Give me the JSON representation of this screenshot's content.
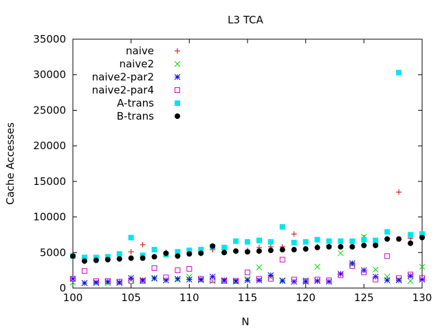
{
  "chart_data": {
    "type": "scatter",
    "title": "L3 TCA",
    "xlabel": "N",
    "ylabel": "Cache Accesses",
    "xlim": [
      100,
      130
    ],
    "ylim": [
      0,
      35000
    ],
    "x_ticks": [
      "100",
      "105",
      "110",
      "115",
      "120",
      "125",
      "130"
    ],
    "y_ticks": [
      "0",
      "5000",
      "10000",
      "15000",
      "20000",
      "25000",
      "30000",
      "35000"
    ],
    "legend_position": "top-left",
    "x": [
      100,
      101,
      102,
      103,
      104,
      105,
      106,
      107,
      108,
      109,
      110,
      111,
      112,
      113,
      114,
      115,
      116,
      117,
      118,
      119,
      120,
      121,
      122,
      123,
      124,
      125,
      126,
      127,
      128,
      129,
      130
    ],
    "series": [
      {
        "name": "naive",
        "marker": "plus",
        "color": "#cc0000",
        "values": [
          4400,
          3800,
          3900,
          4000,
          4200,
          5100,
          6100,
          4400,
          5000,
          4600,
          4900,
          4900,
          5400,
          5000,
          5200,
          5300,
          5700,
          5800,
          5800,
          7600,
          5500,
          5800,
          6000,
          6500,
          6300,
          7100,
          6200,
          6900,
          13500,
          7000,
          7400
        ]
      },
      {
        "name": "naive2",
        "marker": "cross",
        "color": "#00dd00",
        "values": [
          800,
          700,
          700,
          700,
          700,
          1100,
          1000,
          1300,
          1100,
          1200,
          1600,
          1100,
          1000,
          1000,
          900,
          1300,
          2900,
          1500,
          1100,
          900,
          1100,
          3000,
          900,
          4900,
          3300,
          7200,
          2600,
          1600,
          1200,
          1000,
          3000
        ]
      },
      {
        "name": "naive2-par2",
        "marker": "asterisk",
        "color": "#0000ee",
        "values": [
          1300,
          700,
          800,
          900,
          800,
          1400,
          1100,
          1400,
          1100,
          1300,
          1200,
          1200,
          1600,
          1100,
          1000,
          1100,
          1100,
          1800,
          1000,
          900,
          900,
          1000,
          900,
          2000,
          3500,
          2500,
          1600,
          1100,
          1100,
          1700,
          1200
        ]
      },
      {
        "name": "naive2-par4",
        "marker": "square",
        "color": "#cc00cc",
        "values": [
          1300,
          2400,
          1000,
          1000,
          900,
          1000,
          1000,
          2800,
          1500,
          2500,
          2700,
          1300,
          1100,
          1000,
          1000,
          2200,
          1300,
          1300,
          4000,
          1200,
          1000,
          1200,
          1100,
          1800,
          3100,
          2200,
          1200,
          4500,
          1400,
          1900,
          1400
        ]
      },
      {
        "name": "A-trans",
        "marker": "filled-square",
        "color": "#00e5ee",
        "values": [
          4500,
          4300,
          4300,
          4400,
          4800,
          7100,
          4600,
          5400,
          4700,
          5100,
          5300,
          5400,
          5800,
          5700,
          6600,
          6500,
          6700,
          6500,
          8600,
          6400,
          6500,
          6800,
          6600,
          6600,
          6600,
          6800,
          6700,
          7900,
          30300,
          7500,
          7600
        ]
      },
      {
        "name": "B-trans",
        "marker": "filled-circle",
        "color": "#000000",
        "values": [
          4500,
          3800,
          3900,
          4000,
          4100,
          4200,
          4200,
          4400,
          4900,
          4500,
          4800,
          4900,
          5900,
          5000,
          5200,
          5100,
          5200,
          5300,
          5400,
          5400,
          5500,
          5700,
          5800,
          5800,
          5800,
          6000,
          6000,
          6900,
          6900,
          6300,
          7100
        ]
      }
    ]
  }
}
